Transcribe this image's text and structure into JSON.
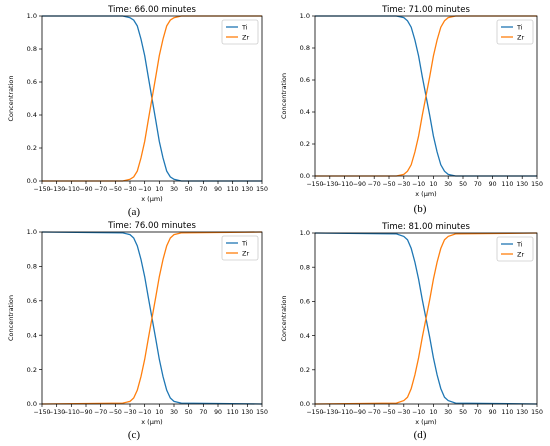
{
  "figure": {
    "colors": {
      "Ti": "#1f77b4",
      "Zr": "#ff7f0e"
    }
  },
  "chart_data": [
    {
      "type": "line",
      "panel_label": "(a)",
      "title": "Time: 66.00 minutes",
      "xlabel": "x (μm)",
      "ylabel": "Concentration",
      "xlim": [
        -150,
        150
      ],
      "ylim": [
        0,
        1
      ],
      "x_ticks": [
        -150,
        -130,
        -110,
        -90,
        -70,
        -50,
        -30,
        -10,
        10,
        30,
        50,
        70,
        90,
        110,
        130,
        150
      ],
      "y_ticks": [
        "0.0",
        "0.2",
        "0.4",
        "0.6",
        "0.8",
        "1.0"
      ],
      "legend": "top-right",
      "grid": false,
      "x": [
        -150,
        -40,
        -30,
        -25,
        -20,
        -15,
        -10,
        -5,
        0,
        5,
        10,
        15,
        20,
        25,
        30,
        40,
        150
      ],
      "series": [
        {
          "name": "Ti",
          "values": [
            1.0,
            1.0,
            0.99,
            0.975,
            0.94,
            0.86,
            0.76,
            0.63,
            0.5,
            0.37,
            0.24,
            0.14,
            0.06,
            0.025,
            0.01,
            0.0,
            0.0
          ]
        },
        {
          "name": "Zr",
          "values": [
            0.0,
            0.0,
            0.01,
            0.025,
            0.06,
            0.14,
            0.24,
            0.37,
            0.5,
            0.63,
            0.76,
            0.86,
            0.94,
            0.975,
            0.99,
            1.0,
            1.0
          ]
        }
      ]
    },
    {
      "type": "line",
      "panel_label": "(b)",
      "title": "Time: 71.00 minutes",
      "xlabel": "x (μm)",
      "ylabel": "Concentration",
      "xlim": [
        -150,
        150
      ],
      "ylim": [
        0,
        1
      ],
      "x_ticks": [
        -150,
        -130,
        -110,
        -90,
        -70,
        -50,
        -30,
        -10,
        10,
        30,
        50,
        70,
        90,
        110,
        130,
        150
      ],
      "y_ticks": [
        "0.0",
        "0.2",
        "0.4",
        "0.6",
        "0.8",
        "1.0"
      ],
      "legend": "top-right",
      "grid": false,
      "x": [
        -150,
        -40,
        -30,
        -25,
        -20,
        -15,
        -10,
        -5,
        0,
        5,
        10,
        15,
        20,
        25,
        30,
        40,
        150
      ],
      "series": [
        {
          "name": "Ti",
          "values": [
            1.0,
            1.0,
            0.99,
            0.97,
            0.93,
            0.85,
            0.75,
            0.62,
            0.5,
            0.38,
            0.25,
            0.15,
            0.07,
            0.03,
            0.01,
            0.0,
            0.0
          ]
        },
        {
          "name": "Zr",
          "values": [
            0.0,
            0.0,
            0.01,
            0.03,
            0.07,
            0.15,
            0.25,
            0.38,
            0.5,
            0.62,
            0.75,
            0.85,
            0.93,
            0.97,
            0.99,
            1.0,
            1.0
          ]
        }
      ]
    },
    {
      "type": "line",
      "panel_label": "(c)",
      "title": "Time: 76.00 minutes",
      "xlabel": "x (μm)",
      "ylabel": "Concentration",
      "xlim": [
        -150,
        150
      ],
      "ylim": [
        0,
        1
      ],
      "x_ticks": [
        -150,
        -130,
        -110,
        -90,
        -70,
        -50,
        -30,
        -10,
        10,
        30,
        50,
        70,
        90,
        110,
        130,
        150
      ],
      "y_ticks": [
        "0.0",
        "0.2",
        "0.4",
        "0.6",
        "0.8",
        "1.0"
      ],
      "legend": "top-right",
      "grid": false,
      "x": [
        -150,
        -40,
        -30,
        -25,
        -20,
        -15,
        -10,
        -5,
        0,
        5,
        10,
        15,
        20,
        25,
        30,
        40,
        150
      ],
      "series": [
        {
          "name": "Ti",
          "values": [
            1.0,
            0.995,
            0.985,
            0.965,
            0.92,
            0.84,
            0.74,
            0.62,
            0.5,
            0.38,
            0.26,
            0.16,
            0.08,
            0.035,
            0.015,
            0.005,
            0.0
          ]
        },
        {
          "name": "Zr",
          "values": [
            0.0,
            0.005,
            0.015,
            0.035,
            0.08,
            0.16,
            0.26,
            0.38,
            0.5,
            0.62,
            0.74,
            0.84,
            0.92,
            0.965,
            0.985,
            0.995,
            1.0
          ]
        }
      ]
    },
    {
      "type": "line",
      "panel_label": "(d)",
      "title": "Time: 81.00 minutes",
      "xlabel": "x (μm)",
      "ylabel": "Concentration",
      "xlim": [
        -150,
        150
      ],
      "ylim": [
        0,
        1
      ],
      "x_ticks": [
        -150,
        -130,
        -110,
        -90,
        -70,
        -50,
        -30,
        -10,
        10,
        30,
        50,
        70,
        90,
        110,
        130,
        150
      ],
      "y_ticks": [
        "0.0",
        "0.2",
        "0.4",
        "0.6",
        "0.8",
        "1.0"
      ],
      "legend": "top-right",
      "grid": false,
      "x": [
        -150,
        -40,
        -30,
        -25,
        -20,
        -15,
        -10,
        -5,
        0,
        5,
        10,
        15,
        20,
        25,
        30,
        40,
        150
      ],
      "series": [
        {
          "name": "Ti",
          "values": [
            1.0,
            0.995,
            0.98,
            0.96,
            0.91,
            0.83,
            0.73,
            0.61,
            0.5,
            0.39,
            0.27,
            0.17,
            0.09,
            0.04,
            0.02,
            0.005,
            0.0
          ]
        },
        {
          "name": "Zr",
          "values": [
            0.0,
            0.005,
            0.02,
            0.04,
            0.09,
            0.17,
            0.27,
            0.39,
            0.5,
            0.61,
            0.73,
            0.83,
            0.91,
            0.96,
            0.98,
            0.995,
            1.0
          ]
        }
      ]
    }
  ]
}
